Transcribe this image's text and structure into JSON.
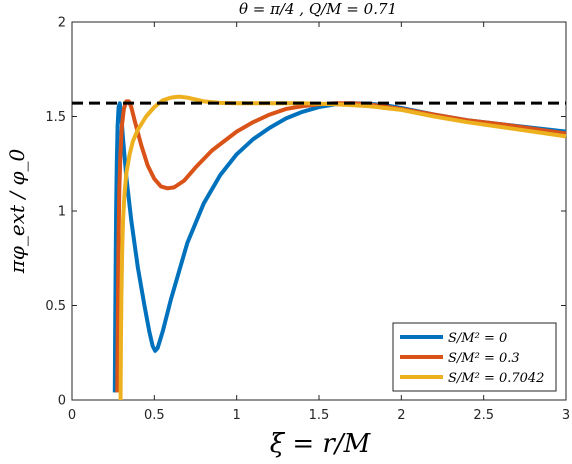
{
  "chart_data": {
    "type": "line",
    "title": "θ = π/4 ,    Q/M = 0.71",
    "xlabel": "ξ = r/M",
    "ylabel": "πφ_ext / φ_0",
    "xlim": [
      0,
      3
    ],
    "ylim": [
      0,
      2
    ],
    "x_ticks": [
      0,
      0.5,
      1,
      1.5,
      2,
      2.5,
      3
    ],
    "x_tick_labels": [
      "0",
      "0.5",
      "1",
      "1.5",
      "2",
      "2.5",
      "3"
    ],
    "y_ticks": [
      0,
      0.5,
      1,
      1.5,
      2
    ],
    "y_tick_labels": [
      "0",
      "0.5",
      "1",
      "1.5",
      "2"
    ],
    "grid": false,
    "legend_position": "bottom-right",
    "reference_line": {
      "y": 1.5708,
      "style": "dashed",
      "color": "#000000"
    },
    "series": [
      {
        "name": "S/M² = 0",
        "color": "#0072BD",
        "points": [
          [
            0.26,
            0.04
          ],
          [
            0.262,
            0.35
          ],
          [
            0.265,
            0.7
          ],
          [
            0.268,
            1.0
          ],
          [
            0.272,
            1.25
          ],
          [
            0.277,
            1.45
          ],
          [
            0.283,
            1.55
          ],
          [
            0.29,
            1.57
          ],
          [
            0.3,
            1.5
          ],
          [
            0.31,
            1.38
          ],
          [
            0.33,
            1.18
          ],
          [
            0.36,
            0.95
          ],
          [
            0.4,
            0.7
          ],
          [
            0.44,
            0.5
          ],
          [
            0.47,
            0.36
          ],
          [
            0.49,
            0.285
          ],
          [
            0.505,
            0.26
          ],
          [
            0.52,
            0.275
          ],
          [
            0.55,
            0.36
          ],
          [
            0.6,
            0.53
          ],
          [
            0.7,
            0.83
          ],
          [
            0.8,
            1.04
          ],
          [
            0.9,
            1.19
          ],
          [
            1.0,
            1.3
          ],
          [
            1.1,
            1.38
          ],
          [
            1.2,
            1.44
          ],
          [
            1.3,
            1.49
          ],
          [
            1.4,
            1.525
          ],
          [
            1.5,
            1.55
          ],
          [
            1.6,
            1.565
          ],
          [
            1.7,
            1.57
          ],
          [
            1.8,
            1.568
          ],
          [
            1.9,
            1.56
          ],
          [
            2.0,
            1.545
          ],
          [
            2.2,
            1.51
          ],
          [
            2.4,
            1.48
          ],
          [
            2.6,
            1.46
          ],
          [
            2.8,
            1.44
          ],
          [
            3.0,
            1.42
          ]
        ]
      },
      {
        "name": "S/M² = 0.3",
        "color": "#D95319",
        "points": [
          [
            0.275,
            0.04
          ],
          [
            0.278,
            0.4
          ],
          [
            0.282,
            0.8
          ],
          [
            0.287,
            1.1
          ],
          [
            0.294,
            1.3
          ],
          [
            0.303,
            1.45
          ],
          [
            0.315,
            1.54
          ],
          [
            0.33,
            1.58
          ],
          [
            0.345,
            1.58
          ],
          [
            0.36,
            1.55
          ],
          [
            0.38,
            1.48
          ],
          [
            0.42,
            1.35
          ],
          [
            0.46,
            1.24
          ],
          [
            0.5,
            1.17
          ],
          [
            0.54,
            1.13
          ],
          [
            0.58,
            1.12
          ],
          [
            0.62,
            1.125
          ],
          [
            0.68,
            1.16
          ],
          [
            0.75,
            1.23
          ],
          [
            0.85,
            1.32
          ],
          [
            1.0,
            1.42
          ],
          [
            1.1,
            1.47
          ],
          [
            1.2,
            1.51
          ],
          [
            1.3,
            1.54
          ],
          [
            1.4,
            1.555
          ],
          [
            1.5,
            1.565
          ],
          [
            1.6,
            1.57
          ],
          [
            1.7,
            1.57
          ],
          [
            1.8,
            1.565
          ],
          [
            2.0,
            1.54
          ],
          [
            2.2,
            1.51
          ],
          [
            2.4,
            1.48
          ],
          [
            2.6,
            1.46
          ],
          [
            2.8,
            1.435
          ],
          [
            3.0,
            1.41
          ]
        ]
      },
      {
        "name": "S/M² = 0.7042",
        "color": "#EDB120",
        "points": [
          [
            0.295,
            0.0
          ],
          [
            0.297,
            0.3
          ],
          [
            0.3,
            0.55
          ],
          [
            0.305,
            0.8
          ],
          [
            0.31,
            0.95
          ],
          [
            0.318,
            1.08
          ],
          [
            0.33,
            1.2
          ],
          [
            0.35,
            1.3
          ],
          [
            0.37,
            1.37
          ],
          [
            0.4,
            1.43
          ],
          [
            0.45,
            1.5
          ],
          [
            0.5,
            1.55
          ],
          [
            0.55,
            1.585
          ],
          [
            0.6,
            1.6
          ],
          [
            0.65,
            1.605
          ],
          [
            0.7,
            1.6
          ],
          [
            0.75,
            1.59
          ],
          [
            0.8,
            1.58
          ],
          [
            0.9,
            1.572
          ],
          [
            1.0,
            1.57
          ],
          [
            1.2,
            1.57
          ],
          [
            1.4,
            1.57
          ],
          [
            1.6,
            1.565
          ],
          [
            1.8,
            1.555
          ],
          [
            2.0,
            1.535
          ],
          [
            2.2,
            1.5
          ],
          [
            2.4,
            1.47
          ],
          [
            2.6,
            1.445
          ],
          [
            2.8,
            1.42
          ],
          [
            3.0,
            1.395
          ]
        ]
      }
    ]
  }
}
